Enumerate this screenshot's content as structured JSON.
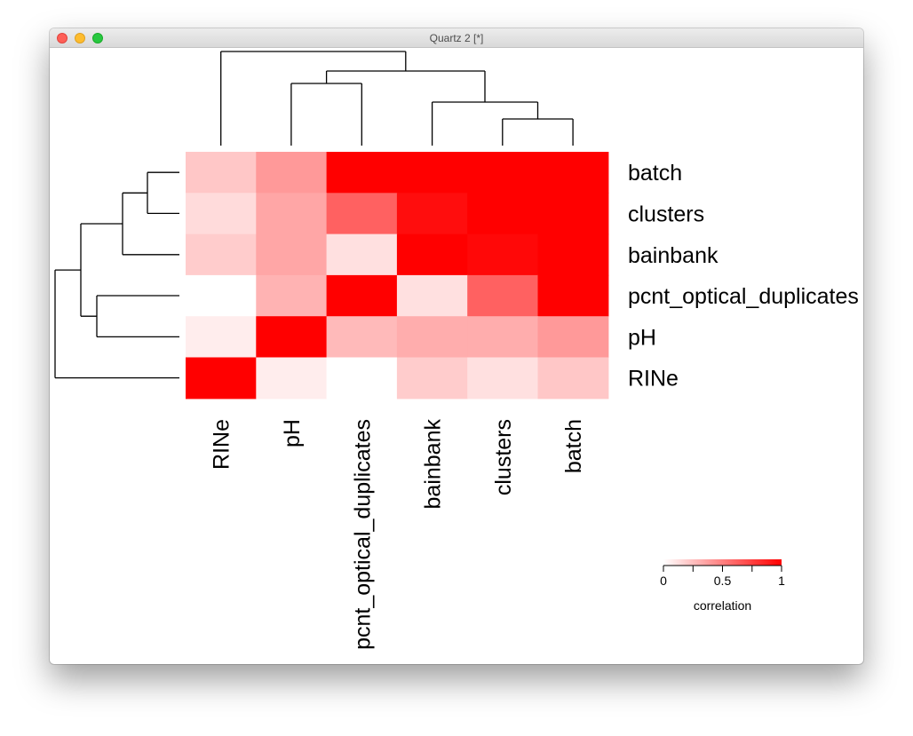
{
  "window": {
    "title": "Quartz 2 [*]"
  },
  "colors": {
    "low": "#ffffff",
    "high": "#ff0000",
    "dendrogram": "#000000"
  },
  "chart_data": {
    "type": "heatmap",
    "title": "",
    "columns": [
      "RINe",
      "pH",
      "pcnt_optical_duplicates",
      "bainbank",
      "clusters",
      "batch"
    ],
    "rows": [
      "batch",
      "clusters",
      "bainbank",
      "pcnt_optical_duplicates",
      "pH",
      "RINe"
    ],
    "values": [
      [
        0.22,
        0.4,
        1.0,
        1.0,
        1.0,
        1.0
      ],
      [
        0.14,
        0.35,
        0.62,
        0.95,
        1.0,
        1.0
      ],
      [
        0.2,
        0.35,
        0.12,
        1.0,
        0.97,
        1.0
      ],
      [
        0.0,
        0.3,
        1.0,
        0.12,
        0.62,
        1.0
      ],
      [
        0.07,
        1.0,
        0.27,
        0.32,
        0.32,
        0.4
      ],
      [
        1.0,
        0.07,
        0.0,
        0.2,
        0.12,
        0.22
      ]
    ],
    "color_scale": {
      "min": 0,
      "max": 1,
      "ticks": [
        "0",
        "0.5",
        "1"
      ]
    },
    "legend_title": "correlation",
    "legend_position": "bottom-right",
    "dendrogram_columns": true,
    "dendrogram_rows": true
  }
}
